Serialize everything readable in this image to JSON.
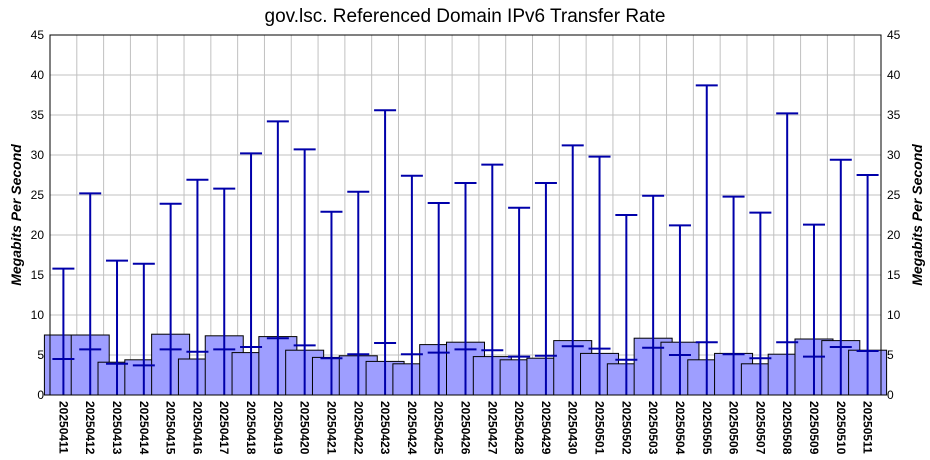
{
  "chart_data": {
    "type": "bar",
    "title": "gov.lsc. Referenced Domain IPv6 Transfer Rate",
    "ylabel": "Megabits Per Second",
    "ylim": [
      0,
      45
    ],
    "yticks": [
      0,
      5,
      10,
      15,
      20,
      25,
      30,
      35,
      40,
      45
    ],
    "grid": true,
    "colors": {
      "bar_fill": "#9e9eff",
      "bar_stroke": "#000000",
      "whisker": "#0000aa",
      "grid": "#c0c0c0"
    },
    "categories": [
      "20250411",
      "20250412",
      "20250413",
      "20250414",
      "20250415",
      "20250416",
      "20250417",
      "20250418",
      "20250419",
      "20250420",
      "20250421",
      "20250422",
      "20250423",
      "20250424",
      "20250425",
      "20250426",
      "20250427",
      "20250428",
      "20250429",
      "20250430",
      "20250501",
      "20250502",
      "20250503",
      "20250504",
      "20250505",
      "20250506",
      "20250507",
      "20250508",
      "20250509",
      "20250510",
      "20250511"
    ],
    "series": [
      {
        "values": [
          7.5,
          7.5,
          4.1,
          4.4,
          7.6,
          4.5,
          7.4,
          5.3,
          7.3,
          5.6,
          4.7,
          4.9,
          4.2,
          3.9,
          6.3,
          6.6,
          4.8,
          4.4,
          4.6,
          6.8,
          5.2,
          3.9,
          7.1,
          6.6,
          4.4,
          5.2,
          3.9,
          5.1,
          7.0,
          6.8,
          5.6
        ]
      },
      {
        "values": [
          15.8,
          25.2,
          16.8,
          16.4,
          23.9,
          26.9,
          25.8,
          30.2,
          34.2,
          30.7,
          22.9,
          25.4,
          35.6,
          27.4,
          24.0,
          26.5,
          28.8,
          23.4,
          26.5,
          31.2,
          29.8,
          22.5,
          24.9,
          21.2,
          38.7,
          24.8,
          22.8,
          35.2,
          21.3,
          29.4,
          27.5
        ]
      },
      {
        "values": [
          4.5,
          5.7,
          3.9,
          3.7,
          5.7,
          5.4,
          5.7,
          6.0,
          7.1,
          6.2,
          4.6,
          5.1,
          6.5,
          5.1,
          5.3,
          5.7,
          5.6,
          4.8,
          4.9,
          6.1,
          5.8,
          4.4,
          5.9,
          5.0,
          6.6,
          5.1,
          4.6,
          6.6,
          4.8,
          6.0,
          5.5
        ]
      }
    ]
  }
}
